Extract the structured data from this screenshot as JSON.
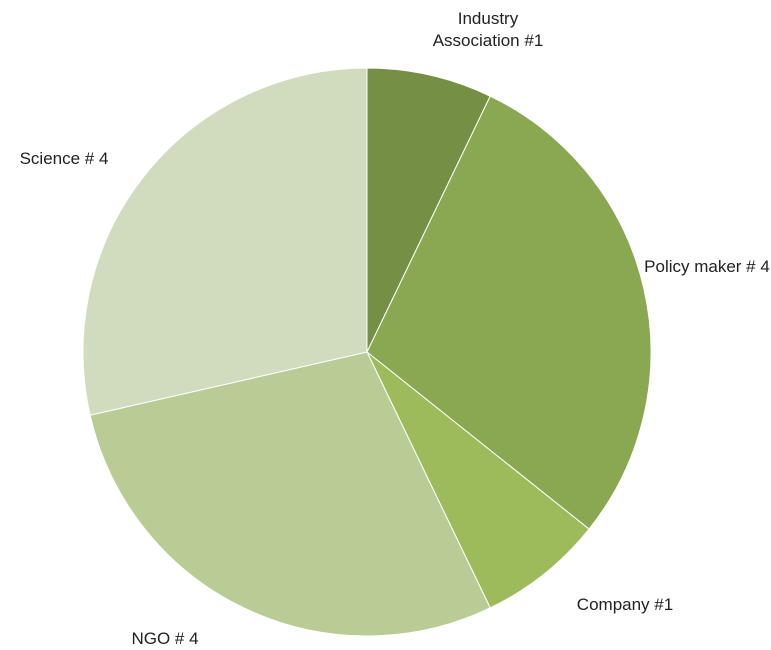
{
  "chart_data": {
    "type": "pie",
    "categories": [
      "Industry Association #1",
      "Policy maker # 4",
      "Company #1",
      "NGO # 4",
      "Science # 4"
    ],
    "values": [
      1,
      4,
      1,
      4,
      4
    ],
    "colors": [
      "#758f45",
      "#8aa851",
      "#9dbb5a",
      "#b9cc96",
      "#d1dcbf"
    ]
  }
}
